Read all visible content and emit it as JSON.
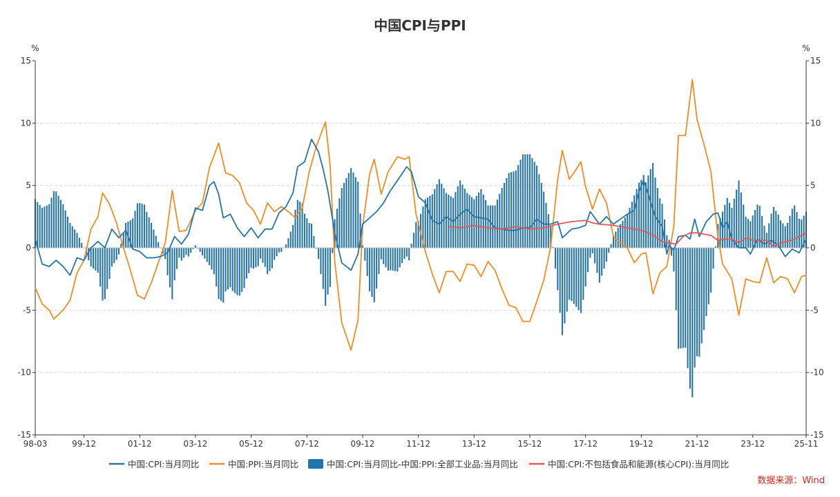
{
  "chart_data": {
    "type": "line+bar",
    "title": "中国CPI与PPI",
    "y_unit_left": "%",
    "y_unit_right": "%",
    "ylim": [
      -15,
      15
    ],
    "yticks": [
      15,
      10,
      5,
      0,
      -5,
      -10,
      -15
    ],
    "x_start": "1998-03",
    "x_end": "2025-11",
    "x_tick_labels": [
      "98-03",
      "99-12",
      "01-12",
      "03-12",
      "05-12",
      "07-12",
      "09-12",
      "11-12",
      "13-12",
      "15-12",
      "17-12",
      "19-12",
      "21-12",
      "23-12",
      "25-11"
    ],
    "x_tick_months": [
      "1998-03",
      "1999-12",
      "2001-12",
      "2003-12",
      "2005-12",
      "2007-12",
      "2009-12",
      "2011-12",
      "2013-12",
      "2015-12",
      "2017-12",
      "2019-12",
      "2021-12",
      "2023-12",
      "2025-11"
    ],
    "series": [
      {
        "name": "中国:CPI:当月同比",
        "type": "line",
        "color": "#2574a9",
        "anchors": [
          [
            "1998-03",
            0.7
          ],
          [
            "1998-06",
            -1.3
          ],
          [
            "1998-09",
            -1.5
          ],
          [
            "1998-12",
            -1.0
          ],
          [
            "1999-03",
            -1.5
          ],
          [
            "1999-06",
            -2.2
          ],
          [
            "1999-09",
            -0.8
          ],
          [
            "1999-12",
            -1.0
          ],
          [
            "2000-03",
            0.0
          ],
          [
            "2000-06",
            0.5
          ],
          [
            "2000-09",
            0.0
          ],
          [
            "2000-12",
            1.5
          ],
          [
            "2001-03",
            0.8
          ],
          [
            "2001-06",
            1.4
          ],
          [
            "2001-09",
            -0.1
          ],
          [
            "2001-12",
            -0.3
          ],
          [
            "2002-03",
            -0.8
          ],
          [
            "2002-06",
            -0.8
          ],
          [
            "2002-09",
            -0.7
          ],
          [
            "2002-12",
            -0.4
          ],
          [
            "2003-03",
            0.9
          ],
          [
            "2003-06",
            0.3
          ],
          [
            "2003-09",
            1.1
          ],
          [
            "2003-12",
            3.2
          ],
          [
            "2004-03",
            3.0
          ],
          [
            "2004-06",
            5.0
          ],
          [
            "2004-08",
            5.3
          ],
          [
            "2004-10",
            4.3
          ],
          [
            "2004-12",
            2.4
          ],
          [
            "2005-03",
            2.7
          ],
          [
            "2005-06",
            1.6
          ],
          [
            "2005-09",
            0.9
          ],
          [
            "2005-12",
            1.6
          ],
          [
            "2006-03",
            0.8
          ],
          [
            "2006-06",
            1.5
          ],
          [
            "2006-09",
            1.5
          ],
          [
            "2006-12",
            2.8
          ],
          [
            "2007-03",
            3.3
          ],
          [
            "2007-06",
            4.4
          ],
          [
            "2007-08",
            6.5
          ],
          [
            "2007-11",
            6.9
          ],
          [
            "2008-02",
            8.7
          ],
          [
            "2008-05",
            7.7
          ],
          [
            "2008-07",
            6.3
          ],
          [
            "2008-09",
            4.6
          ],
          [
            "2008-12",
            1.2
          ],
          [
            "2009-03",
            -1.2
          ],
          [
            "2009-07",
            -1.8
          ],
          [
            "2009-10",
            -0.5
          ],
          [
            "2009-12",
            1.9
          ],
          [
            "2010-03",
            2.4
          ],
          [
            "2010-06",
            2.9
          ],
          [
            "2010-09",
            3.6
          ],
          [
            "2010-12",
            4.6
          ],
          [
            "2011-03",
            5.4
          ],
          [
            "2011-07",
            6.5
          ],
          [
            "2011-09",
            6.1
          ],
          [
            "2011-12",
            4.1
          ],
          [
            "2012-03",
            3.6
          ],
          [
            "2012-06",
            2.2
          ],
          [
            "2012-09",
            1.9
          ],
          [
            "2012-12",
            2.5
          ],
          [
            "2013-03",
            2.1
          ],
          [
            "2013-06",
            2.7
          ],
          [
            "2013-09",
            3.1
          ],
          [
            "2013-12",
            2.5
          ],
          [
            "2014-03",
            2.4
          ],
          [
            "2014-06",
            2.3
          ],
          [
            "2014-09",
            1.6
          ],
          [
            "2014-12",
            1.5
          ],
          [
            "2015-03",
            1.4
          ],
          [
            "2015-06",
            1.4
          ],
          [
            "2015-09",
            1.6
          ],
          [
            "2015-12",
            1.6
          ],
          [
            "2016-03",
            2.3
          ],
          [
            "2016-06",
            1.9
          ],
          [
            "2016-09",
            1.9
          ],
          [
            "2016-12",
            2.1
          ],
          [
            "2017-02",
            0.8
          ],
          [
            "2017-06",
            1.5
          ],
          [
            "2017-09",
            1.6
          ],
          [
            "2017-12",
            1.8
          ],
          [
            "2018-02",
            2.9
          ],
          [
            "2018-06",
            1.9
          ],
          [
            "2018-09",
            2.5
          ],
          [
            "2018-12",
            1.9
          ],
          [
            "2019-03",
            2.3
          ],
          [
            "2019-06",
            2.7
          ],
          [
            "2019-09",
            3.0
          ],
          [
            "2019-11",
            4.5
          ],
          [
            "2020-01",
            5.4
          ],
          [
            "2020-03",
            4.3
          ],
          [
            "2020-06",
            2.5
          ],
          [
            "2020-09",
            1.7
          ],
          [
            "2020-11",
            -0.5
          ],
          [
            "2020-12",
            0.2
          ],
          [
            "2021-02",
            -0.2
          ],
          [
            "2021-04",
            0.9
          ],
          [
            "2021-07",
            1.0
          ],
          [
            "2021-09",
            0.7
          ],
          [
            "2021-11",
            2.3
          ],
          [
            "2022-01",
            0.9
          ],
          [
            "2022-04",
            2.1
          ],
          [
            "2022-07",
            2.7
          ],
          [
            "2022-09",
            2.8
          ],
          [
            "2022-11",
            1.6
          ],
          [
            "2023-01",
            2.1
          ],
          [
            "2023-03",
            0.7
          ],
          [
            "2023-06",
            0.0
          ],
          [
            "2023-09",
            0.0
          ],
          [
            "2023-11",
            -0.5
          ],
          [
            "2024-02",
            0.7
          ],
          [
            "2024-05",
            0.3
          ],
          [
            "2024-08",
            0.6
          ],
          [
            "2024-11",
            0.2
          ],
          [
            "2025-02",
            -0.7
          ],
          [
            "2025-05",
            -0.1
          ],
          [
            "2025-08",
            -0.4
          ],
          [
            "2025-11",
            0.7
          ]
        ]
      },
      {
        "name": "中国:PPI:当月同比",
        "type": "line",
        "color": "#f28c1f",
        "anchors": [
          [
            "1998-03",
            -3.2
          ],
          [
            "1998-06",
            -4.5
          ],
          [
            "1998-09",
            -5.0
          ],
          [
            "1998-11",
            -5.7
          ],
          [
            "1999-03",
            -5.0
          ],
          [
            "1999-06",
            -4.2
          ],
          [
            "1999-09",
            -2.0
          ],
          [
            "1999-12",
            -1.0
          ],
          [
            "2000-03",
            1.5
          ],
          [
            "2000-06",
            2.5
          ],
          [
            "2000-08",
            4.4
          ],
          [
            "2000-11",
            3.5
          ],
          [
            "2001-02",
            2.0
          ],
          [
            "2001-05",
            0.0
          ],
          [
            "2001-08",
            -1.8
          ],
          [
            "2001-11",
            -3.8
          ],
          [
            "2002-02",
            -4.1
          ],
          [
            "2002-05",
            -2.8
          ],
          [
            "2002-08",
            -1.2
          ],
          [
            "2002-11",
            0.4
          ],
          [
            "2003-02",
            4.6
          ],
          [
            "2003-05",
            1.3
          ],
          [
            "2003-08",
            1.4
          ],
          [
            "2003-12",
            3.0
          ],
          [
            "2004-03",
            3.6
          ],
          [
            "2004-06",
            6.4
          ],
          [
            "2004-10",
            8.4
          ],
          [
            "2005-01",
            6.0
          ],
          [
            "2005-04",
            5.8
          ],
          [
            "2005-07",
            5.2
          ],
          [
            "2005-10",
            3.6
          ],
          [
            "2006-01",
            3.0
          ],
          [
            "2006-04",
            1.9
          ],
          [
            "2006-07",
            3.6
          ],
          [
            "2006-10",
            2.9
          ],
          [
            "2007-01",
            3.3
          ],
          [
            "2007-04",
            2.9
          ],
          [
            "2007-07",
            2.4
          ],
          [
            "2007-10",
            3.2
          ],
          [
            "2008-01",
            6.1
          ],
          [
            "2008-04",
            8.1
          ],
          [
            "2008-08",
            10.1
          ],
          [
            "2008-10",
            6.6
          ],
          [
            "2008-12",
            -1.1
          ],
          [
            "2009-03",
            -6.0
          ],
          [
            "2009-07",
            -8.2
          ],
          [
            "2009-10",
            -5.8
          ],
          [
            "2009-12",
            1.7
          ],
          [
            "2010-03",
            5.9
          ],
          [
            "2010-05",
            7.1
          ],
          [
            "2010-08",
            4.3
          ],
          [
            "2010-11",
            6.1
          ],
          [
            "2011-03",
            7.3
          ],
          [
            "2011-06",
            7.1
          ],
          [
            "2011-08",
            7.3
          ],
          [
            "2011-11",
            2.7
          ],
          [
            "2012-03",
            -0.3
          ],
          [
            "2012-06",
            -2.1
          ],
          [
            "2012-09",
            -3.6
          ],
          [
            "2012-12",
            -1.9
          ],
          [
            "2013-03",
            -1.9
          ],
          [
            "2013-06",
            -2.7
          ],
          [
            "2013-09",
            -1.3
          ],
          [
            "2013-12",
            -1.4
          ],
          [
            "2014-03",
            -2.3
          ],
          [
            "2014-06",
            -1.1
          ],
          [
            "2014-09",
            -1.8
          ],
          [
            "2014-12",
            -3.3
          ],
          [
            "2015-03",
            -4.6
          ],
          [
            "2015-06",
            -4.8
          ],
          [
            "2015-09",
            -5.9
          ],
          [
            "2015-12",
            -5.9
          ],
          [
            "2016-03",
            -4.3
          ],
          [
            "2016-06",
            -2.6
          ],
          [
            "2016-09",
            0.1
          ],
          [
            "2016-12",
            5.5
          ],
          [
            "2017-02",
            7.8
          ],
          [
            "2017-05",
            5.5
          ],
          [
            "2017-08",
            6.3
          ],
          [
            "2017-10",
            6.9
          ],
          [
            "2017-12",
            4.9
          ],
          [
            "2018-03",
            3.1
          ],
          [
            "2018-06",
            4.7
          ],
          [
            "2018-09",
            3.6
          ],
          [
            "2018-12",
            0.9
          ],
          [
            "2019-03",
            0.4
          ],
          [
            "2019-06",
            0.0
          ],
          [
            "2019-09",
            -1.2
          ],
          [
            "2019-12",
            -0.5
          ],
          [
            "2020-02",
            -0.4
          ],
          [
            "2020-05",
            -3.7
          ],
          [
            "2020-08",
            -2.0
          ],
          [
            "2020-11",
            -1.5
          ],
          [
            "2021-02",
            1.7
          ],
          [
            "2021-04",
            9.0
          ],
          [
            "2021-07",
            9.0
          ],
          [
            "2021-10",
            13.5
          ],
          [
            "2021-12",
            10.3
          ],
          [
            "2022-03",
            8.3
          ],
          [
            "2022-06",
            6.1
          ],
          [
            "2022-09",
            0.9
          ],
          [
            "2022-11",
            -1.3
          ],
          [
            "2023-03",
            -2.5
          ],
          [
            "2023-06",
            -5.4
          ],
          [
            "2023-09",
            -2.5
          ],
          [
            "2023-12",
            -2.7
          ],
          [
            "2024-03",
            -2.8
          ],
          [
            "2024-06",
            -0.8
          ],
          [
            "2024-09",
            -2.8
          ],
          [
            "2024-12",
            -2.3
          ],
          [
            "2025-03",
            -2.5
          ],
          [
            "2025-06",
            -3.6
          ],
          [
            "2025-09",
            -2.3
          ],
          [
            "2025-11",
            -2.2
          ]
        ]
      },
      {
        "name": "中国:CPI:当月同比-中国:PPI:全部工业品:当月同比",
        "type": "bar",
        "color": "#2574a9",
        "derived": "CPI minus PPI (monthly)"
      },
      {
        "name": "中国:CPI:不包括食品和能源(核心CPI):当月同比",
        "type": "line",
        "color": "#e3575a",
        "anchors": [
          [
            "2013-01",
            1.7
          ],
          [
            "2013-06",
            1.6
          ],
          [
            "2013-12",
            1.8
          ],
          [
            "2014-06",
            1.6
          ],
          [
            "2014-12",
            1.5
          ],
          [
            "2015-06",
            1.7
          ],
          [
            "2015-12",
            1.5
          ],
          [
            "2016-06",
            1.6
          ],
          [
            "2016-12",
            1.9
          ],
          [
            "2017-06",
            2.1
          ],
          [
            "2017-12",
            2.2
          ],
          [
            "2018-03",
            2.0
          ],
          [
            "2018-06",
            1.9
          ],
          [
            "2018-12",
            1.8
          ],
          [
            "2019-06",
            1.6
          ],
          [
            "2019-12",
            1.4
          ],
          [
            "2020-03",
            1.2
          ],
          [
            "2020-06",
            0.9
          ],
          [
            "2020-09",
            0.5
          ],
          [
            "2020-12",
            0.4
          ],
          [
            "2021-03",
            0.3
          ],
          [
            "2021-06",
            0.9
          ],
          [
            "2021-09",
            1.2
          ],
          [
            "2021-12",
            1.2
          ],
          [
            "2022-03",
            1.1
          ],
          [
            "2022-06",
            1.0
          ],
          [
            "2022-09",
            0.6
          ],
          [
            "2022-12",
            0.7
          ],
          [
            "2023-03",
            0.7
          ],
          [
            "2023-06",
            0.4
          ],
          [
            "2023-09",
            0.8
          ],
          [
            "2023-12",
            0.6
          ],
          [
            "2024-03",
            0.6
          ],
          [
            "2024-06",
            0.6
          ],
          [
            "2024-09",
            0.1
          ],
          [
            "2024-12",
            0.4
          ],
          [
            "2025-03",
            0.5
          ],
          [
            "2025-06",
            0.7
          ],
          [
            "2025-09",
            1.0
          ],
          [
            "2025-11",
            1.2
          ]
        ]
      }
    ],
    "legend_position": "bottom-center"
  },
  "source_label": "数据来源：Wind"
}
